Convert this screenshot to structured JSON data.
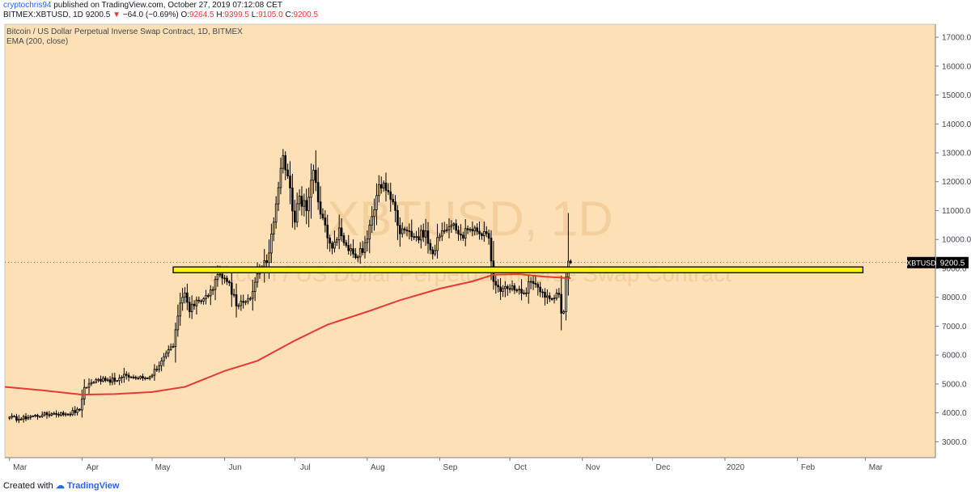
{
  "header": {
    "author": "cryptochris94",
    "published": "published on TradingView.com, October 27, 2019 07:12:08 CET",
    "symbol_line": "BITMEX:XBTUSD, 1D",
    "last": "9200.5",
    "change": "−64.0 (−0.69%)",
    "o_label": "O:",
    "o_value": "9264.5",
    "h_label": "H:",
    "h_value": "9399.5",
    "l_label": "L:",
    "l_value": "9105.0",
    "c_label": "C:",
    "c_value": "9200.5",
    "change_arrow": "triangle-down-icon"
  },
  "legend": {
    "title": "Bitcoin / US Dollar Perpetual Inverse Swap Contract, 1D, BITMEX",
    "indicator": "EMA (200, close)"
  },
  "watermark": {
    "symbol": "XBTUSD, 1D",
    "description": "Bitcoin / US Dollar Perpetual Inverse Swap Contract"
  },
  "footer": {
    "created_with": "Created with",
    "brand": "TradingView",
    "logo": "tradingview-logo-icon"
  },
  "colors": {
    "background": "#fde0b5",
    "candle": "#000000",
    "ema": "#e53935",
    "zone_fill": "#f7f30f",
    "price_tag_bg": "#000000",
    "price_tag_text": "#ffffff"
  },
  "chart_data": {
    "type": "candlestick",
    "symbol": "XBTUSD",
    "timeframe": "1D",
    "y_axis": {
      "ticks": [
        3000,
        4000,
        5000,
        6000,
        7000,
        8000,
        9000,
        10000,
        11000,
        12000,
        13000,
        14000,
        15000,
        16000,
        17000
      ],
      "tick_labels": [
        "3000.0",
        "4000.0",
        "5000.0",
        "6000.0",
        "7000.0",
        "8000.0",
        "9000.0",
        "10000.0",
        "11000.0",
        "12000.0",
        "13000.0",
        "14000.0",
        "15000.0",
        "16000.0",
        "17000.0"
      ],
      "ylim": [
        2450,
        17450
      ]
    },
    "x_axis": {
      "labels": [
        "Mar",
        "Apr",
        "May",
        "Jun",
        "Jul",
        "Aug",
        "Sep",
        "Oct",
        "Nov",
        "Dec",
        "2020",
        "Feb",
        "Mar"
      ],
      "range": [
        "2019-02-27",
        "2020-03-31"
      ]
    },
    "price_label": {
      "symbol": "XBTUSD",
      "value": "9200.5",
      "price": 9200.5
    },
    "horizontal_zone": {
      "from": 8850,
      "to": 9050,
      "start": "2019-05-10",
      "end": "2020-02-29"
    },
    "anchor_closes": [
      {
        "date": "2019-03-01",
        "close": 3850
      },
      {
        "date": "2019-03-05",
        "close": 3780
      },
      {
        "date": "2019-03-10",
        "close": 3880
      },
      {
        "date": "2019-03-15",
        "close": 3930
      },
      {
        "date": "2019-03-20",
        "close": 3980
      },
      {
        "date": "2019-03-25",
        "close": 3960
      },
      {
        "date": "2019-03-31",
        "close": 4100
      },
      {
        "date": "2019-04-02",
        "close": 4880
      },
      {
        "date": "2019-04-05",
        "close": 5050
      },
      {
        "date": "2019-04-10",
        "close": 5200
      },
      {
        "date": "2019-04-15",
        "close": 5100
      },
      {
        "date": "2019-04-20",
        "close": 5300
      },
      {
        "date": "2019-04-25",
        "close": 5200
      },
      {
        "date": "2019-04-30",
        "close": 5250
      },
      {
        "date": "2019-05-05",
        "close": 5800
      },
      {
        "date": "2019-05-10",
        "close": 6300
      },
      {
        "date": "2019-05-13",
        "close": 7800
      },
      {
        "date": "2019-05-15",
        "close": 8150
      },
      {
        "date": "2019-05-17",
        "close": 7500
      },
      {
        "date": "2019-05-20",
        "close": 7900
      },
      {
        "date": "2019-05-25",
        "close": 8050
      },
      {
        "date": "2019-05-30",
        "close": 8800
      },
      {
        "date": "2019-06-03",
        "close": 8500
      },
      {
        "date": "2019-06-06",
        "close": 7700
      },
      {
        "date": "2019-06-10",
        "close": 7850
      },
      {
        "date": "2019-06-13",
        "close": 8200
      },
      {
        "date": "2019-06-16",
        "close": 8950
      },
      {
        "date": "2019-06-19",
        "close": 9200
      },
      {
        "date": "2019-06-22",
        "close": 10600
      },
      {
        "date": "2019-06-26",
        "close": 12900
      },
      {
        "date": "2019-06-28",
        "close": 12200
      },
      {
        "date": "2019-07-01",
        "close": 10600
      },
      {
        "date": "2019-07-03",
        "close": 11500
      },
      {
        "date": "2019-07-06",
        "close": 11000
      },
      {
        "date": "2019-07-09",
        "close": 12400
      },
      {
        "date": "2019-07-11",
        "close": 11300
      },
      {
        "date": "2019-07-14",
        "close": 10500
      },
      {
        "date": "2019-07-17",
        "close": 9700
      },
      {
        "date": "2019-07-20",
        "close": 10400
      },
      {
        "date": "2019-07-23",
        "close": 9800
      },
      {
        "date": "2019-07-26",
        "close": 9500
      },
      {
        "date": "2019-07-30",
        "close": 9550
      },
      {
        "date": "2019-08-02",
        "close": 10500
      },
      {
        "date": "2019-08-06",
        "close": 11900
      },
      {
        "date": "2019-08-09",
        "close": 11700
      },
      {
        "date": "2019-08-12",
        "close": 11300
      },
      {
        "date": "2019-08-15",
        "close": 10200
      },
      {
        "date": "2019-08-18",
        "close": 10300
      },
      {
        "date": "2019-08-22",
        "close": 10100
      },
      {
        "date": "2019-08-26",
        "close": 10300
      },
      {
        "date": "2019-08-29",
        "close": 9500
      },
      {
        "date": "2019-09-02",
        "close": 10300
      },
      {
        "date": "2019-09-06",
        "close": 10500
      },
      {
        "date": "2019-09-10",
        "close": 10150
      },
      {
        "date": "2019-09-14",
        "close": 10350
      },
      {
        "date": "2019-09-18",
        "close": 10200
      },
      {
        "date": "2019-09-22",
        "close": 10050
      },
      {
        "date": "2019-09-24",
        "close": 8550
      },
      {
        "date": "2019-09-27",
        "close": 8200
      },
      {
        "date": "2019-09-30",
        "close": 8300
      },
      {
        "date": "2019-10-03",
        "close": 8250
      },
      {
        "date": "2019-10-07",
        "close": 8150
      },
      {
        "date": "2019-10-10",
        "close": 8550
      },
      {
        "date": "2019-10-13",
        "close": 8350
      },
      {
        "date": "2019-10-16",
        "close": 8000
      },
      {
        "date": "2019-10-19",
        "close": 7950
      },
      {
        "date": "2019-10-22",
        "close": 8100
      },
      {
        "date": "2019-10-23",
        "close": 7450
      },
      {
        "date": "2019-10-24",
        "close": 7500
      },
      {
        "date": "2019-10-25",
        "close": 8700
      },
      {
        "date": "2019-10-26",
        "close": 9250
      },
      {
        "date": "2019-10-27",
        "close": 9200.5
      }
    ],
    "ema_200": [
      {
        "date": "2019-02-27",
        "value": 4900
      },
      {
        "date": "2019-03-15",
        "value": 4780
      },
      {
        "date": "2019-04-01",
        "value": 4630
      },
      {
        "date": "2019-04-15",
        "value": 4650
      },
      {
        "date": "2019-05-01",
        "value": 4720
      },
      {
        "date": "2019-05-15",
        "value": 4900
      },
      {
        "date": "2019-06-01",
        "value": 5450
      },
      {
        "date": "2019-06-15",
        "value": 5800
      },
      {
        "date": "2019-07-01",
        "value": 6500
      },
      {
        "date": "2019-07-15",
        "value": 7050
      },
      {
        "date": "2019-08-01",
        "value": 7500
      },
      {
        "date": "2019-08-15",
        "value": 7900
      },
      {
        "date": "2019-09-01",
        "value": 8300
      },
      {
        "date": "2019-09-15",
        "value": 8550
      },
      {
        "date": "2019-09-24",
        "value": 8780
      },
      {
        "date": "2019-10-05",
        "value": 8800
      },
      {
        "date": "2019-10-15",
        "value": 8720
      },
      {
        "date": "2019-10-27",
        "value": 8660
      }
    ]
  }
}
